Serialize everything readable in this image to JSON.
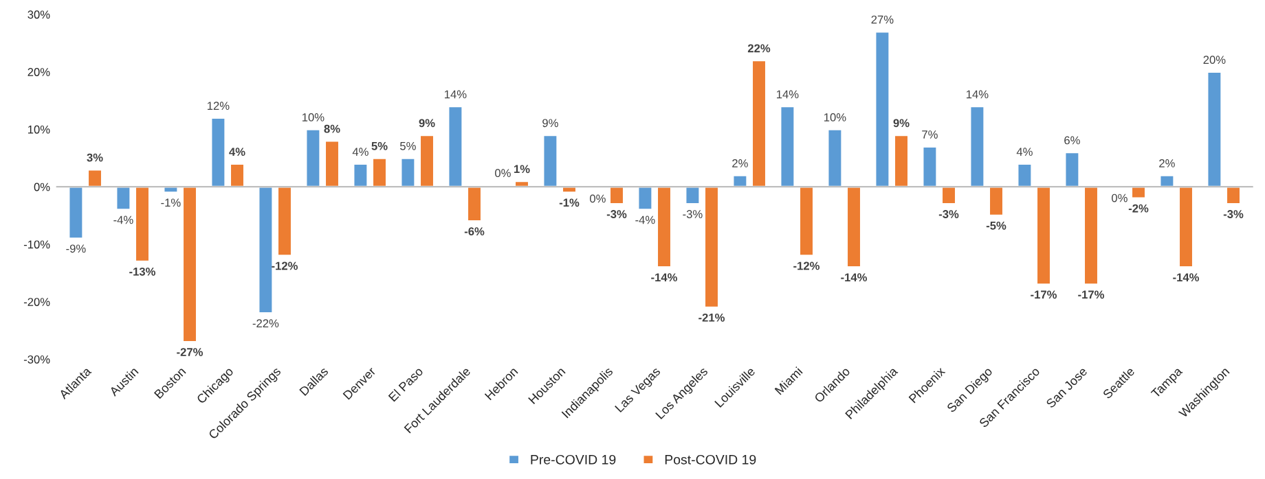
{
  "chart_data": {
    "type": "bar",
    "categories": [
      "Atlanta",
      "Austin",
      "Boston",
      "Chicago",
      "Colorado Springs",
      "Dallas",
      "Denver",
      "El Paso",
      "Fort Lauderdale",
      "Hebron",
      "Houston",
      "Indianapolis",
      "Las Vegas",
      "Los Angeles",
      "Louisville",
      "Miami",
      "Orlando",
      "Philadelphia",
      "Phoenix",
      "San Diego",
      "San Francisco",
      "San Jose",
      "Seattle",
      "Tampa",
      "Washington"
    ],
    "series": [
      {
        "name": "Pre-COVID 19",
        "color": "#5b9bd5",
        "values": [
          -9,
          -4,
          -1,
          12,
          -22,
          10,
          4,
          5,
          14,
          0.3,
          9,
          -0.3,
          -4,
          -3,
          2,
          14,
          10,
          27,
          7,
          14,
          4,
          6,
          -0.2,
          2,
          20
        ],
        "value_labels": [
          "-9%",
          "-4%",
          "-1%",
          "12%",
          "-22%",
          "10%",
          "4%",
          "5%",
          "14%",
          "0%",
          "9%",
          "0%",
          "-4%",
          "-3%",
          "2%",
          "14%",
          "10%",
          "27%",
          "7%",
          "14%",
          "4%",
          "6%",
          "0%",
          "2%",
          "20%"
        ]
      },
      {
        "name": "Post-COVID 19",
        "color": "#ed7d31",
        "values": [
          3,
          -13,
          -27,
          4,
          -12,
          8,
          5,
          9,
          -6,
          1,
          -1,
          -3,
          -14,
          -21,
          22,
          -12,
          -14,
          9,
          -3,
          -5,
          -17,
          -17,
          -2,
          -14,
          -3
        ],
        "value_labels": [
          "3%",
          "-13%",
          "-27%",
          "4%",
          "-12%",
          "8%",
          "5%",
          "9%",
          "-6%",
          "1%",
          "-1%",
          "-3%",
          "-14%",
          "-21%",
          "22%",
          "-12%",
          "-14%",
          "9%",
          "-3%",
          "-5%",
          "-17%",
          "-17%",
          "-2%",
          "-14%",
          "-3%"
        ]
      }
    ],
    "ylim": [
      -30,
      30
    ],
    "yticks": [
      {
        "value": -30,
        "label": "-30%"
      },
      {
        "value": -20,
        "label": "-20%"
      },
      {
        "value": -10,
        "label": "-10%"
      },
      {
        "value": 0,
        "label": "0%"
      },
      {
        "value": 10,
        "label": "10%"
      },
      {
        "value": 20,
        "label": "20%"
      },
      {
        "value": 30,
        "label": "30%"
      }
    ],
    "legend": "bottom"
  }
}
